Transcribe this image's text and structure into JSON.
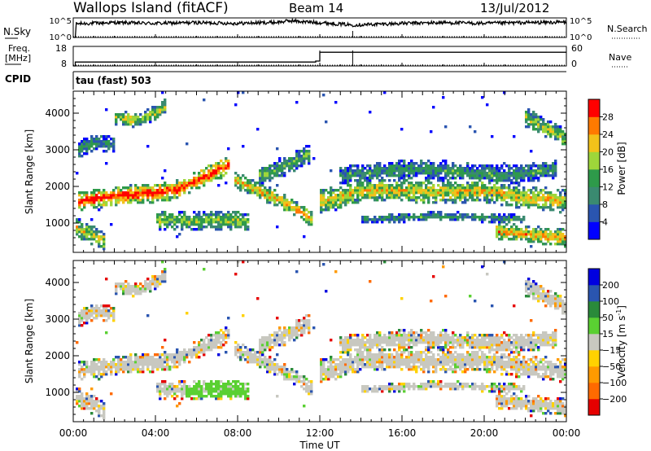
{
  "header": {
    "station": "Wallops Island (fitACF)",
    "beam": "Beam 14",
    "date": "13/Jul/2012"
  },
  "top_panels": {
    "nsky_label": "N.Sky",
    "nsearch_label": "N.Search",
    "noise_ticks": [
      "10^5",
      "10^0"
    ],
    "freq_label": "Freq.",
    "freq_unit": "[MHz]",
    "freq_ticks": [
      "18",
      "8"
    ],
    "nave_label": "Nave",
    "nave_ticks": [
      "60",
      "0"
    ],
    "cpid_label": "CPID",
    "cpid_value": "tau (fast) 503"
  },
  "colors": {
    "power_scale": [
      "#0000ff",
      "#2a55b0",
      "#3a8a70",
      "#2e9a4a",
      "#9ed63a",
      "#f2c21a",
      "#ff7a00",
      "#ff0000"
    ],
    "velocity_scale": [
      "#e60000",
      "#ff6a00",
      "#ff9a00",
      "#ffd200",
      "#c8c8c0",
      "#5ad032",
      "#2a8a3a",
      "#2a55b0",
      "#0000e0"
    ]
  },
  "chart_data": [
    {
      "type": "line",
      "name": "noise",
      "x_range": [
        0,
        24
      ],
      "ylim_log10": [
        0,
        5
      ],
      "series": [
        {
          "name": "N.Sky",
          "x": [
            0,
            0.1,
            0.15,
            2,
            4,
            6,
            8,
            10,
            10.6,
            11.2,
            12,
            13.6,
            16,
            18,
            20,
            22,
            24
          ],
          "y_log10": [
            0,
            0,
            3.5,
            3.8,
            3.6,
            3.8,
            3.6,
            3.9,
            4.3,
            4.0,
            3.8,
            3.2,
            3.6,
            3.8,
            3.6,
            3.8,
            3.9
          ]
        },
        {
          "name": "N.Search",
          "x": [
            0,
            24
          ],
          "y_log10": [
            0,
            0
          ]
        }
      ]
    },
    {
      "type": "line",
      "name": "frequency",
      "x_range": [
        0,
        24
      ],
      "ylim": [
        8,
        18
      ],
      "series": [
        {
          "name": "Freq",
          "x": [
            0,
            0.1,
            0.1,
            11.8,
            11.8,
            12.0,
            12.0,
            13.6,
            13.6,
            24
          ],
          "y": [
            8,
            8,
            10,
            10,
            10.5,
            10.5,
            15,
            15,
            15,
            15
          ]
        },
        {
          "name": "Nave",
          "x": [
            0,
            24
          ],
          "y": [
            8,
            8
          ]
        }
      ]
    },
    {
      "type": "heatmap",
      "name": "power",
      "xlabel": "",
      "ylabel": "Slant Range [km]",
      "x_range": [
        0,
        24
      ],
      "ylim": [
        200,
        4600
      ],
      "y_ticks": [
        1000,
        2000,
        3000,
        4000
      ],
      "colorbar_label": "Power [dB]",
      "colorbar_ticks": [
        4,
        8,
        12,
        16,
        20,
        24,
        28
      ],
      "bands": [
        {
          "x": [
            0.2,
            2.0,
            3.5,
            5.0,
            6.5,
            7.6
          ],
          "y": [
            1600,
            1750,
            1800,
            1900,
            2300,
            2600
          ],
          "width": 260,
          "level": 0.78
        },
        {
          "x": [
            7.8,
            9.0,
            10.5,
            11.6
          ],
          "y": [
            2200,
            1900,
            1500,
            1100
          ],
          "width": 220,
          "level": 0.6
        },
        {
          "x": [
            12.0,
            13.0,
            14.0,
            16.0,
            18.0,
            20.0,
            22.0,
            24.0
          ],
          "y": [
            1600,
            1700,
            1900,
            1900,
            1850,
            1900,
            1700,
            1600
          ],
          "width": 320,
          "level": 0.55
        },
        {
          "x": [
            4.0,
            6.0,
            7.5,
            8.5
          ],
          "y": [
            1100,
            1050,
            1100,
            1050
          ],
          "width": 260,
          "level": 0.45
        },
        {
          "x": [
            2.0,
            3.0,
            4.0,
            4.5
          ],
          "y": [
            3900,
            3800,
            4000,
            4200
          ],
          "width": 200,
          "level": 0.5
        },
        {
          "x": [
            0.2,
            1.0,
            2.0
          ],
          "y": [
            3000,
            3200,
            3100
          ],
          "width": 240,
          "level": 0.3
        },
        {
          "x": [
            9.0,
            10.5,
            11.5
          ],
          "y": [
            2300,
            2600,
            2900
          ],
          "width": 260,
          "level": 0.35
        },
        {
          "x": [
            13.0,
            15.0,
            17.0,
            19.0,
            21.0,
            23.5
          ],
          "y": [
            2300,
            2400,
            2500,
            2400,
            2300,
            2500
          ],
          "width": 260,
          "level": 0.3
        },
        {
          "x": [
            22.0,
            23.0,
            24.0
          ],
          "y": [
            3900,
            3600,
            3300
          ],
          "width": 260,
          "level": 0.45
        },
        {
          "x": [
            20.5,
            22.0,
            24.0
          ],
          "y": [
            800,
            700,
            600
          ],
          "width": 240,
          "level": 0.6
        },
        {
          "x": [
            0.1,
            0.8,
            1.6
          ],
          "y": [
            900,
            700,
            500
          ],
          "width": 260,
          "level": 0.5
        },
        {
          "x": [
            14.0,
            18.0,
            22.0
          ],
          "y": [
            1100,
            1200,
            1100
          ],
          "width": 120,
          "level": 0.3
        }
      ]
    },
    {
      "type": "heatmap",
      "name": "velocity",
      "xlabel": "Time UT",
      "ylabel": "Slant Range [km]",
      "x_range": [
        0,
        24
      ],
      "ylim": [
        200,
        4600
      ],
      "x_ticks": [
        "00:00",
        "04:00",
        "08:00",
        "12:00",
        "16:00",
        "20:00",
        "00:00"
      ],
      "y_ticks": [
        1000,
        2000,
        3000,
        4000
      ],
      "colorbar_label": "Velocity [m s-1]",
      "colorbar_ticks": [
        200,
        100,
        50,
        15,
        -15,
        -50,
        -100,
        -200
      ],
      "green_patch": {
        "x": [
          5.5,
          8.5
        ],
        "y": [
          850,
          1350
        ]
      }
    }
  ]
}
